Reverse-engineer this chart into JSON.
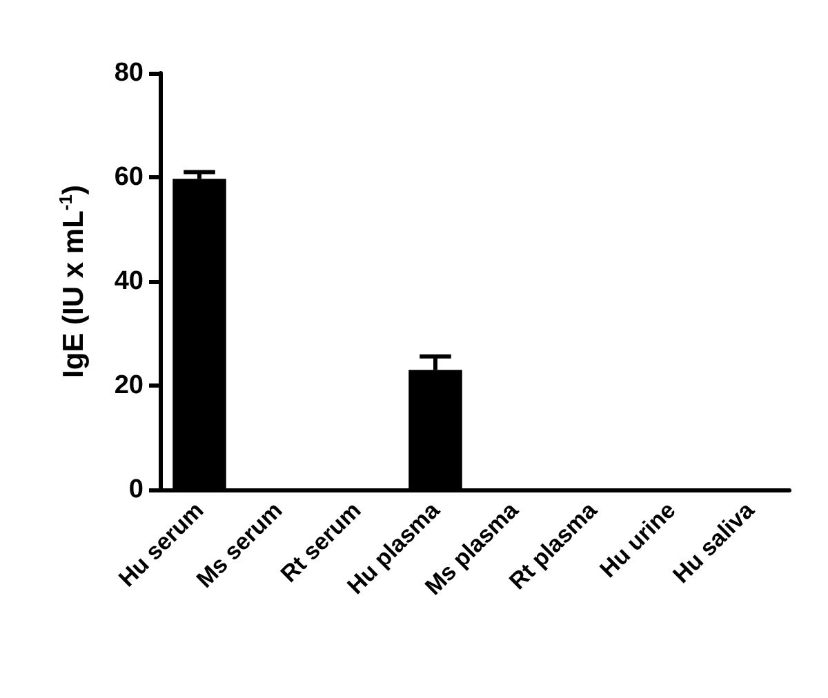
{
  "chart_data": {
    "type": "bar",
    "ylabel": "IgE (IU x mL$^{-1}$)",
    "categories": [
      "Hu serum",
      "Ms serum",
      "Rt serum",
      "Hu plasma",
      "Ms plasma",
      "Rt plasma",
      "Hu urine",
      "Hu saliva"
    ],
    "values": [
      59.7,
      0,
      0,
      23.0,
      0,
      0,
      0,
      0
    ],
    "errors": [
      [
        59.7,
        61.0
      ],
      null,
      null,
      [
        23.0,
        25.6
      ],
      null,
      null,
      null,
      null
    ],
    "color": "#000000",
    "ylim": [
      0,
      80
    ],
    "yticks": [
      0,
      20,
      40,
      60,
      80
    ]
  }
}
